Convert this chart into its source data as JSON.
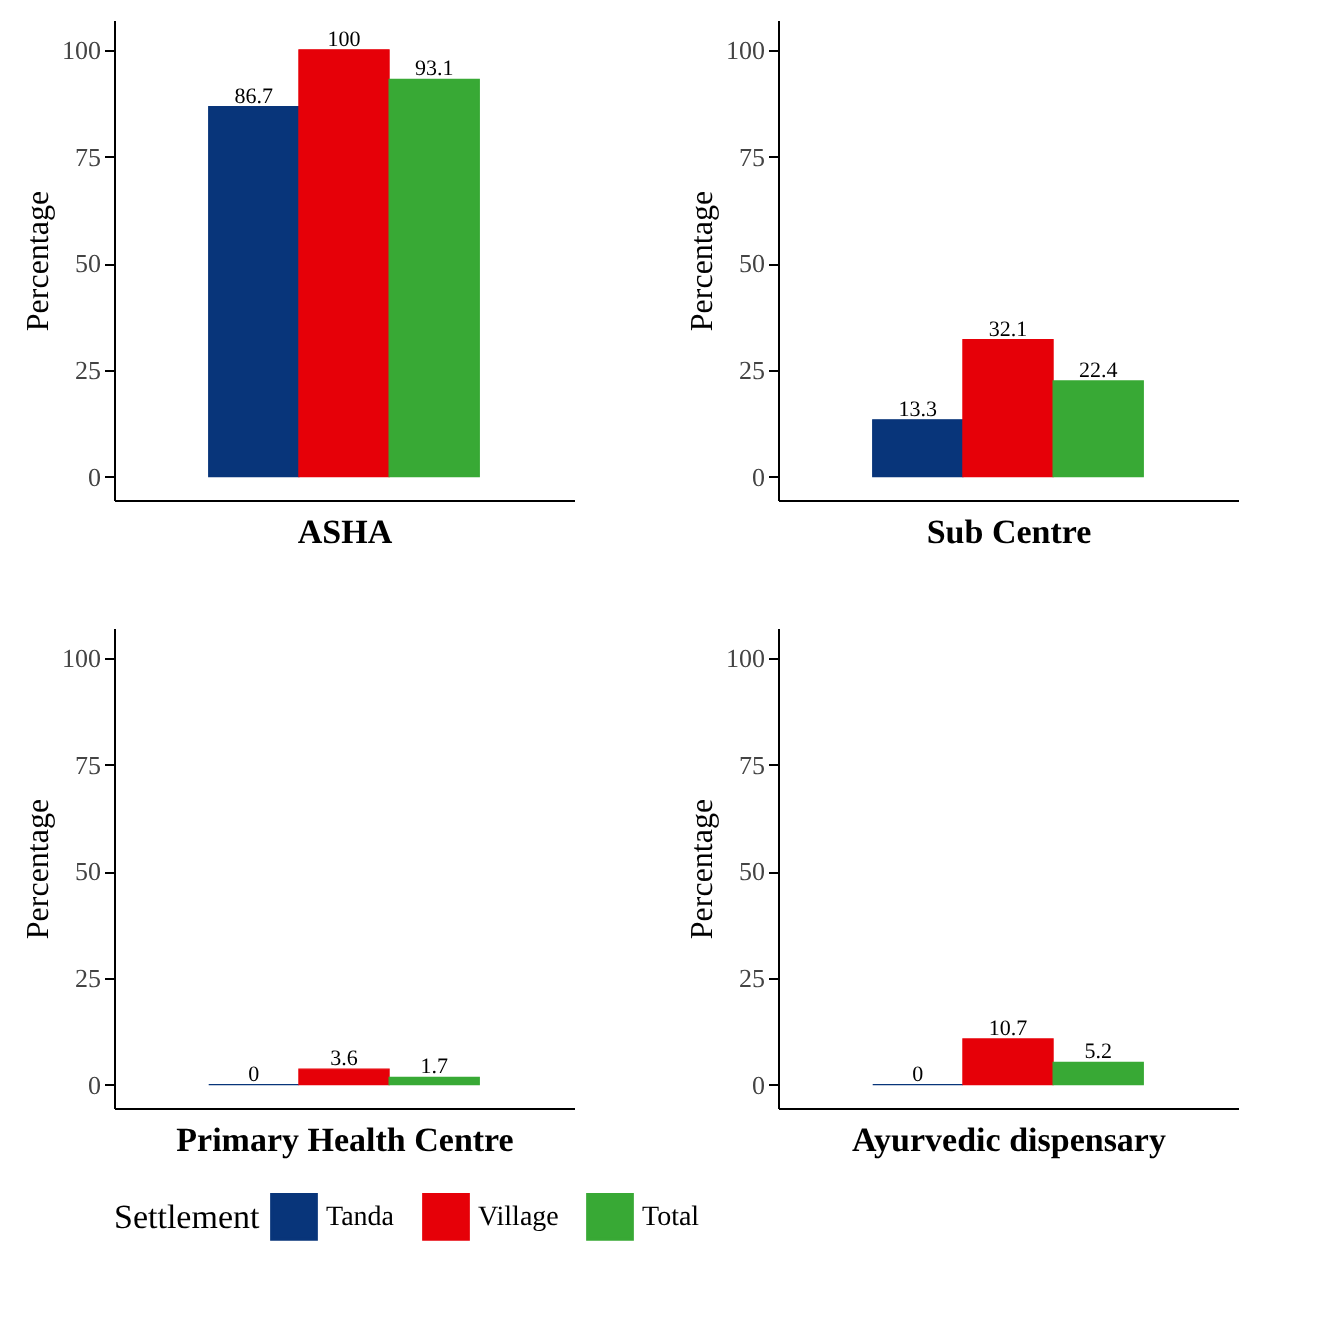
{
  "chart_data": [
    {
      "type": "bar",
      "xlabel": "ASHA",
      "ylabel": "Percentage",
      "legend_title": "Settlement",
      "legend": "bottom",
      "categories": [
        null
      ],
      "ylim": [
        -5.5,
        107
      ],
      "yticks": [
        0,
        25,
        50,
        75,
        100
      ],
      "data_labels": true,
      "series": [
        {
          "name": "Tanda",
          "color": "#08357a",
          "values": [
            86.7
          ]
        },
        {
          "name": "Village",
          "color": "#e60008",
          "values": [
            100
          ]
        },
        {
          "name": "Total",
          "color": "#38a935",
          "values": [
            93.1
          ]
        }
      ]
    },
    {
      "type": "bar",
      "xlabel": "Sub Centre",
      "ylabel": "Percentage",
      "categories": [
        null
      ],
      "ylim": [
        -5.5,
        107
      ],
      "yticks": [
        0,
        25,
        50,
        75,
        100
      ],
      "data_labels": true,
      "series": [
        {
          "name": "Tanda",
          "color": "#08357a",
          "values": [
            13.3
          ]
        },
        {
          "name": "Village",
          "color": "#e60008",
          "values": [
            32.1
          ]
        },
        {
          "name": "Total",
          "color": "#38a935",
          "values": [
            22.4
          ]
        }
      ]
    },
    {
      "type": "bar",
      "xlabel": "Primary Health Centre",
      "ylabel": "Percentage",
      "categories": [
        null
      ],
      "ylim": [
        -5.5,
        107
      ],
      "yticks": [
        0,
        25,
        50,
        75,
        100
      ],
      "data_labels": true,
      "series": [
        {
          "name": "Tanda",
          "color": "#08357a",
          "values": [
            0
          ]
        },
        {
          "name": "Village",
          "color": "#e60008",
          "values": [
            3.6
          ]
        },
        {
          "name": "Total",
          "color": "#38a935",
          "values": [
            1.7
          ]
        }
      ]
    },
    {
      "type": "bar",
      "xlabel": "Ayurvedic dispensary",
      "ylabel": "Percentage",
      "categories": [
        null
      ],
      "ylim": [
        -5.5,
        107
      ],
      "yticks": [
        0,
        25,
        50,
        75,
        100
      ],
      "data_labels": true,
      "series": [
        {
          "name": "Tanda",
          "color": "#08357a",
          "values": [
            0
          ]
        },
        {
          "name": "Village",
          "color": "#e60008",
          "values": [
            10.7
          ]
        },
        {
          "name": "Total",
          "color": "#38a935",
          "values": [
            5.2
          ]
        }
      ]
    }
  ]
}
